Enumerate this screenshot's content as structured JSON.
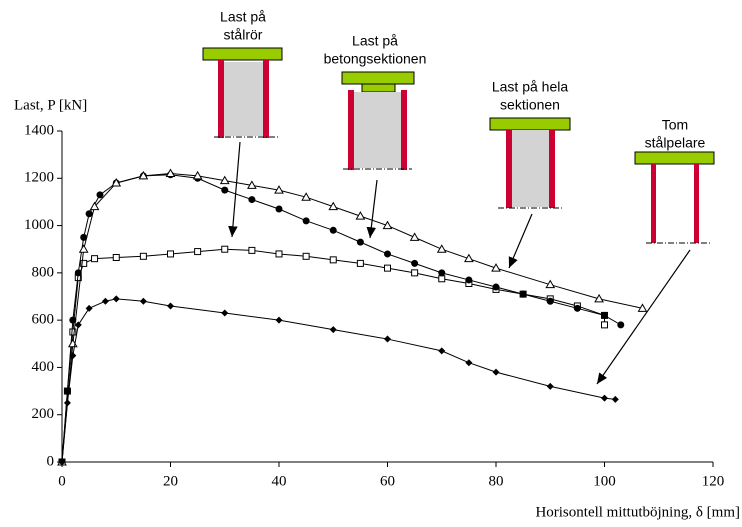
{
  "chart_data": {
    "type": "line",
    "y_label": "Last, P [kN]",
    "x_label": "Horisontell mittutböjning, δ [mm]",
    "xlim": [
      0,
      120
    ],
    "xticks": [
      0,
      20,
      40,
      60,
      80,
      100,
      120
    ],
    "ylim": [
      0,
      1400
    ],
    "yticks": [
      0,
      200,
      400,
      600,
      800,
      1000,
      1200,
      1400
    ],
    "annotations": [
      {
        "text": [
          "Last på",
          "stålrör"
        ]
      },
      {
        "text": [
          "Last på",
          "betongsektionen"
        ]
      },
      {
        "text": [
          "Last på hela",
          "sektionen"
        ]
      },
      {
        "text": [
          "Tom",
          "stålpelare"
        ]
      }
    ],
    "series": [
      {
        "color": "#000000",
        "marker": "square",
        "x": [
          0,
          1,
          2,
          3,
          4,
          6,
          10,
          15,
          20,
          25,
          30,
          35,
          40,
          45,
          50,
          55,
          60,
          65,
          70,
          75,
          80,
          85,
          90,
          95,
          100,
          100
        ],
        "values": [
          0,
          300,
          550,
          780,
          840,
          860,
          865,
          870,
          880,
          890,
          900,
          895,
          880,
          870,
          855,
          840,
          820,
          800,
          775,
          755,
          730,
          710,
          690,
          660,
          620,
          580
        ]
      },
      {
        "color": "#000000",
        "marker": "circle",
        "x": [
          0,
          1,
          2,
          3,
          4,
          5,
          7,
          10,
          15,
          20,
          25,
          30,
          35,
          40,
          45,
          50,
          55,
          60,
          65,
          70,
          75,
          80,
          85,
          90,
          95,
          100,
          103
        ],
        "values": [
          0,
          300,
          600,
          800,
          950,
          1050,
          1130,
          1180,
          1210,
          1215,
          1200,
          1150,
          1110,
          1070,
          1020,
          980,
          930,
          880,
          840,
          800,
          770,
          740,
          710,
          680,
          650,
          620,
          580
        ]
      },
      {
        "color": "#000000",
        "marker": "triangle",
        "x": [
          0,
          2,
          4,
          6,
          10,
          15,
          20,
          25,
          30,
          35,
          40,
          45,
          50,
          55,
          60,
          65,
          70,
          75,
          80,
          90,
          99,
          107
        ],
        "values": [
          0,
          500,
          900,
          1080,
          1180,
          1210,
          1220,
          1210,
          1190,
          1170,
          1150,
          1120,
          1080,
          1040,
          1000,
          950,
          900,
          860,
          820,
          750,
          690,
          650
        ]
      },
      {
        "color": "#000000",
        "marker": "diamond",
        "x": [
          0,
          1,
          2,
          3,
          5,
          8,
          10,
          15,
          20,
          30,
          40,
          50,
          60,
          70,
          75,
          80,
          90,
          100,
          102
        ],
        "values": [
          0,
          250,
          450,
          580,
          650,
          680,
          690,
          680,
          660,
          630,
          600,
          560,
          520,
          470,
          420,
          380,
          320,
          270,
          265
        ]
      }
    ]
  }
}
